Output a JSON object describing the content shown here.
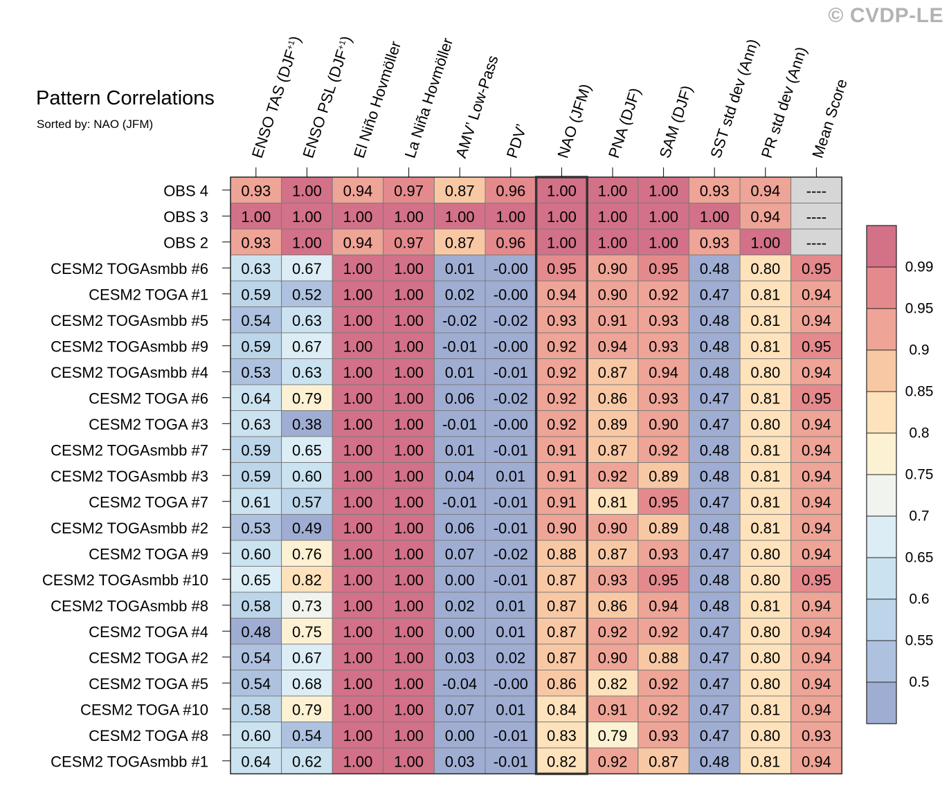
{
  "copyright": "© CVDP-LE",
  "chart_data": {
    "type": "heatmap",
    "title": "Pattern Correlations",
    "subtitle": "Sorted by: NAO (JFM)",
    "columns": [
      "ENSO TAS (DJF+1)",
      "ENSO PSL (DJF+1)",
      "El Niño Hovmöller",
      "La Niña Hovmöller",
      "AMV’ Low-Pass",
      "PDV’",
      "NAO (JFM)",
      "PNA (DJF)",
      "SAM (DJF)",
      "SST std dev (Ann)",
      "PR std dev (Ann)",
      "Mean Score"
    ],
    "highlighted_column": "NAO (JFM)",
    "rows": [
      {
        "name": "OBS 4",
        "values": [
          "0.93",
          "1.00",
          "0.94",
          "0.97",
          "0.87",
          "0.96",
          "1.00",
          "1.00",
          "1.00",
          "0.93",
          "0.94",
          "----"
        ]
      },
      {
        "name": "OBS 3",
        "values": [
          "1.00",
          "1.00",
          "1.00",
          "1.00",
          "1.00",
          "1.00",
          "1.00",
          "1.00",
          "1.00",
          "1.00",
          "0.94",
          "----"
        ]
      },
      {
        "name": "OBS 2",
        "values": [
          "0.93",
          "1.00",
          "0.94",
          "0.97",
          "0.87",
          "0.96",
          "1.00",
          "1.00",
          "1.00",
          "0.93",
          "1.00",
          "----"
        ]
      },
      {
        "name": "CESM2 TOGAsmbb #6",
        "values": [
          "0.63",
          "0.67",
          "1.00",
          "1.00",
          "0.01",
          "-0.00",
          "0.95",
          "0.90",
          "0.95",
          "0.48",
          "0.80",
          "0.95"
        ]
      },
      {
        "name": "CESM2 TOGA #1",
        "values": [
          "0.59",
          "0.52",
          "1.00",
          "1.00",
          "0.02",
          "-0.00",
          "0.94",
          "0.90",
          "0.92",
          "0.47",
          "0.81",
          "0.94"
        ]
      },
      {
        "name": "CESM2 TOGAsmbb #5",
        "values": [
          "0.54",
          "0.63",
          "1.00",
          "1.00",
          "-0.02",
          "-0.02",
          "0.93",
          "0.91",
          "0.93",
          "0.48",
          "0.81",
          "0.94"
        ]
      },
      {
        "name": "CESM2 TOGAsmbb #9",
        "values": [
          "0.59",
          "0.67",
          "1.00",
          "1.00",
          "-0.01",
          "-0.00",
          "0.92",
          "0.94",
          "0.93",
          "0.48",
          "0.81",
          "0.95"
        ]
      },
      {
        "name": "CESM2 TOGAsmbb #4",
        "values": [
          "0.53",
          "0.63",
          "1.00",
          "1.00",
          "0.01",
          "-0.01",
          "0.92",
          "0.87",
          "0.94",
          "0.48",
          "0.80",
          "0.94"
        ]
      },
      {
        "name": "CESM2 TOGA #6",
        "values": [
          "0.64",
          "0.79",
          "1.00",
          "1.00",
          "0.06",
          "-0.02",
          "0.92",
          "0.86",
          "0.93",
          "0.47",
          "0.81",
          "0.95"
        ]
      },
      {
        "name": "CESM2 TOGA #3",
        "values": [
          "0.63",
          "0.38",
          "1.00",
          "1.00",
          "-0.01",
          "-0.00",
          "0.92",
          "0.89",
          "0.90",
          "0.47",
          "0.80",
          "0.94"
        ]
      },
      {
        "name": "CESM2 TOGAsmbb #7",
        "values": [
          "0.59",
          "0.65",
          "1.00",
          "1.00",
          "0.01",
          "-0.01",
          "0.91",
          "0.87",
          "0.92",
          "0.48",
          "0.81",
          "0.94"
        ]
      },
      {
        "name": "CESM2 TOGAsmbb #3",
        "values": [
          "0.59",
          "0.60",
          "1.00",
          "1.00",
          "0.04",
          "0.01",
          "0.91",
          "0.92",
          "0.89",
          "0.48",
          "0.81",
          "0.94"
        ]
      },
      {
        "name": "CESM2 TOGA #7",
        "values": [
          "0.61",
          "0.57",
          "1.00",
          "1.00",
          "-0.01",
          "-0.01",
          "0.91",
          "0.81",
          "0.95",
          "0.47",
          "0.81",
          "0.94"
        ]
      },
      {
        "name": "CESM2 TOGAsmbb #2",
        "values": [
          "0.53",
          "0.49",
          "1.00",
          "1.00",
          "0.06",
          "-0.01",
          "0.90",
          "0.90",
          "0.89",
          "0.48",
          "0.81",
          "0.94"
        ]
      },
      {
        "name": "CESM2 TOGA #9",
        "values": [
          "0.60",
          "0.76",
          "1.00",
          "1.00",
          "0.07",
          "-0.02",
          "0.88",
          "0.87",
          "0.93",
          "0.47",
          "0.80",
          "0.94"
        ]
      },
      {
        "name": "CESM2 TOGAsmbb #10",
        "values": [
          "0.65",
          "0.82",
          "1.00",
          "1.00",
          "0.00",
          "-0.01",
          "0.87",
          "0.93",
          "0.95",
          "0.48",
          "0.80",
          "0.95"
        ]
      },
      {
        "name": "CESM2 TOGAsmbb #8",
        "values": [
          "0.58",
          "0.73",
          "1.00",
          "1.00",
          "0.02",
          "0.01",
          "0.87",
          "0.86",
          "0.94",
          "0.48",
          "0.81",
          "0.94"
        ]
      },
      {
        "name": "CESM2 TOGA #4",
        "values": [
          "0.48",
          "0.75",
          "1.00",
          "1.00",
          "0.00",
          "0.01",
          "0.87",
          "0.92",
          "0.92",
          "0.47",
          "0.80",
          "0.94"
        ]
      },
      {
        "name": "CESM2 TOGA #2",
        "values": [
          "0.54",
          "0.67",
          "1.00",
          "1.00",
          "0.03",
          "0.02",
          "0.87",
          "0.90",
          "0.88",
          "0.47",
          "0.80",
          "0.94"
        ]
      },
      {
        "name": "CESM2 TOGA #5",
        "values": [
          "0.54",
          "0.68",
          "1.00",
          "1.00",
          "-0.04",
          "-0.00",
          "0.86",
          "0.82",
          "0.92",
          "0.47",
          "0.80",
          "0.94"
        ]
      },
      {
        "name": "CESM2 TOGA #10",
        "values": [
          "0.58",
          "0.79",
          "1.00",
          "1.00",
          "0.07",
          "0.01",
          "0.84",
          "0.91",
          "0.92",
          "0.47",
          "0.81",
          "0.94"
        ]
      },
      {
        "name": "CESM2 TOGA #8",
        "values": [
          "0.60",
          "0.54",
          "1.00",
          "1.00",
          "0.00",
          "-0.01",
          "0.83",
          "0.79",
          "0.93",
          "0.47",
          "0.80",
          "0.93"
        ]
      },
      {
        "name": "CESM2 TOGAsmbb #1",
        "values": [
          "0.64",
          "0.62",
          "1.00",
          "1.00",
          "0.03",
          "-0.01",
          "0.82",
          "0.92",
          "0.87",
          "0.48",
          "0.81",
          "0.94"
        ]
      }
    ],
    "colorbar": {
      "levels": [
        "0.5",
        "0.55",
        "0.6",
        "0.65",
        "0.7",
        "0.75",
        "0.8",
        "0.85",
        "0.9",
        "0.95",
        "0.99"
      ],
      "thresholds": [
        0.5,
        0.55,
        0.6,
        0.65,
        0.7,
        0.75,
        0.8,
        0.85,
        0.9,
        0.95,
        0.99
      ],
      "colors": [
        "#9fadd3",
        "#aec2e0",
        "#bcd5e9",
        "#cbe3f0",
        "#dcedf5",
        "#f0f3ee",
        "#fcf1d2",
        "#fde2bb",
        "#f8c8a4",
        "#eea496",
        "#e48a8d",
        "#d27187"
      ],
      "missing_color": "#d6d6d6"
    }
  }
}
